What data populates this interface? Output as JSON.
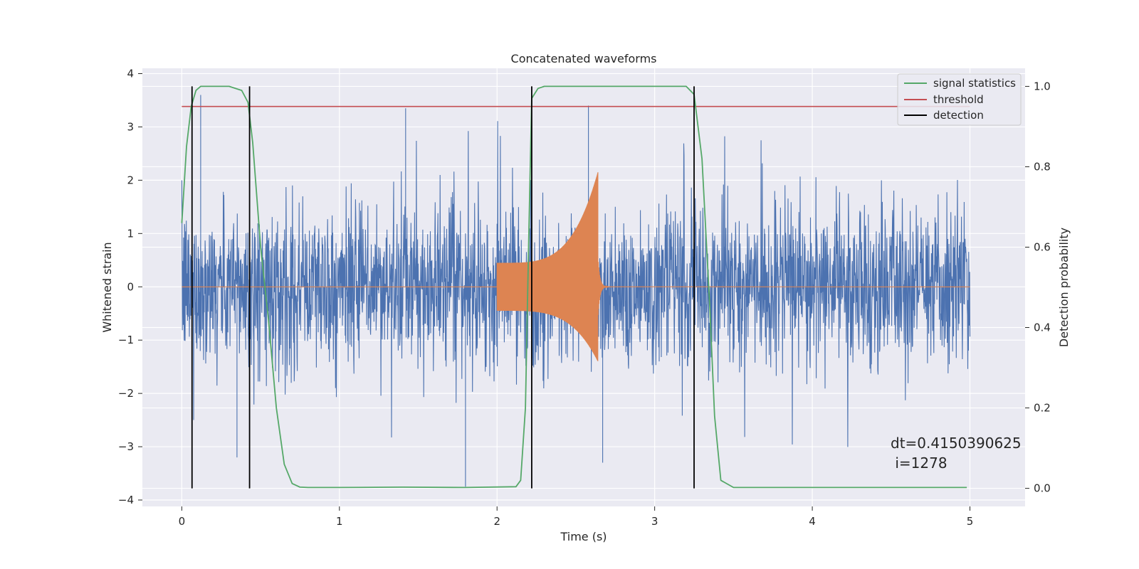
{
  "chart_data": {
    "type": "line",
    "title": "Concatenated waveforms",
    "xlabel": "Time (s)",
    "ylabel": "Whitened strain",
    "y2label": "Detection probability",
    "xlim": [
      -0.25,
      5.35
    ],
    "ylim": [
      -4.12,
      4.1
    ],
    "y2lim": [
      -0.045,
      1.045
    ],
    "xticks": [
      0,
      1,
      2,
      3,
      4,
      5
    ],
    "yticks": [
      -4,
      -3,
      -2,
      -1,
      0,
      1,
      2,
      3,
      4
    ],
    "y2ticks": [
      0.0,
      0.2,
      0.4,
      0.6,
      0.8,
      1.0
    ],
    "grid": true,
    "legend_position": "top-right",
    "legend": [
      {
        "label": "signal statistics",
        "color": "#55a868"
      },
      {
        "label": "threshold",
        "color": "#c44e52"
      },
      {
        "label": "detection",
        "color": "#000000"
      }
    ],
    "series": [
      {
        "role": "whitened strain noise",
        "color": "#4c72b0",
        "x_range": [
          0,
          5
        ],
        "envelope_typical": 1.5,
        "peak_extremes": [
          {
            "x": 0.12,
            "y": 3.6
          },
          {
            "x": 1.42,
            "y": 3.35
          },
          {
            "x": 2.58,
            "y": 3.4
          },
          {
            "x": 1.8,
            "y": -3.75
          },
          {
            "x": 0.35,
            "y": -3.2
          },
          {
            "x": 2.67,
            "y": -3.3
          }
        ]
      },
      {
        "role": "injected chirp",
        "color": "#dd8452",
        "x_start": 2.0,
        "x_merger": 2.64,
        "amp_start": 0.45,
        "amp_peak": 2.15,
        "amp_peak_neg": -1.4
      },
      {
        "name": "signal statistics",
        "axis": "y2",
        "color": "#55a868",
        "x": [
          0.0,
          0.03,
          0.06,
          0.09,
          0.12,
          0.15,
          0.2,
          0.3,
          0.38,
          0.42,
          0.45,
          0.5,
          0.55,
          0.6,
          0.65,
          0.7,
          0.75,
          0.8,
          1.0,
          1.4,
          1.8,
          2.12,
          2.15,
          2.18,
          2.2,
          2.22,
          2.26,
          2.3,
          3.2,
          3.25,
          3.3,
          3.35,
          3.38,
          3.42,
          3.5,
          4.0,
          4.98
        ],
        "values": [
          0.66,
          0.85,
          0.95,
          0.99,
          1.0,
          1.0,
          1.0,
          1.0,
          0.99,
          0.96,
          0.86,
          0.6,
          0.42,
          0.2,
          0.06,
          0.012,
          0.003,
          0.002,
          0.002,
          0.003,
          0.002,
          0.004,
          0.02,
          0.2,
          0.6,
          0.97,
          0.995,
          1.0,
          1.0,
          0.98,
          0.82,
          0.45,
          0.18,
          0.02,
          0.002,
          0.002,
          0.002
        ]
      },
      {
        "name": "threshold",
        "axis": "y2",
        "color": "#c44e52",
        "x": [
          0,
          5
        ],
        "values": [
          0.95,
          0.95
        ]
      }
    ],
    "detections": [
      0.065,
      0.43,
      2.22,
      3.25
    ],
    "detection_range": [
      0.0,
      1.0
    ],
    "annotation": {
      "line1": "dt=0.4150390625",
      "line2": " i=1278",
      "x": 4.5,
      "y": -3.1
    }
  }
}
